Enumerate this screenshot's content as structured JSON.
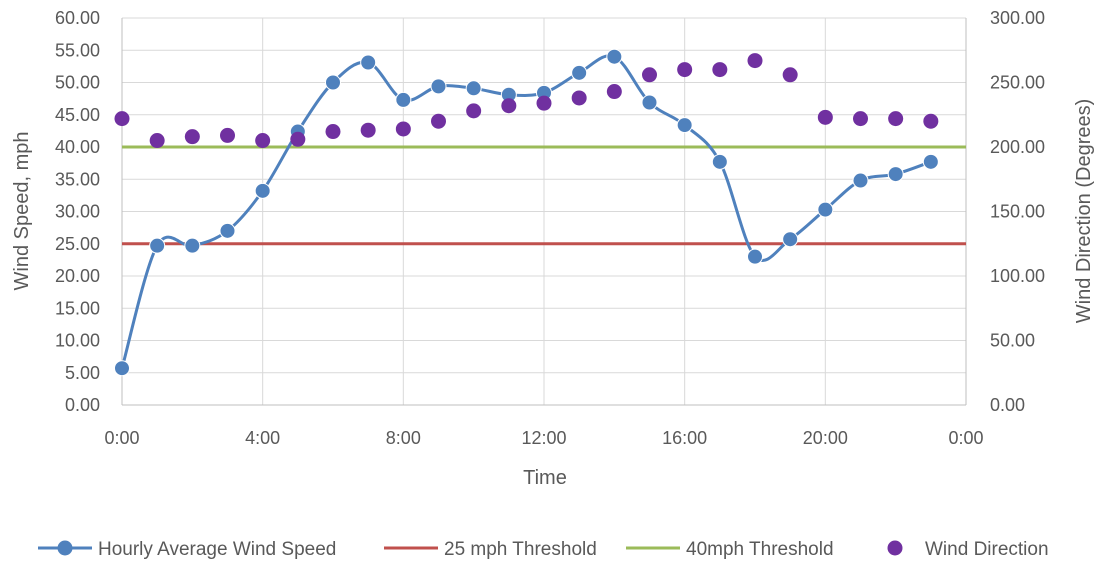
{
  "chart_data": {
    "type": "line",
    "title": "",
    "xlabel": "Time",
    "ylabel": "Wind Speed, mph",
    "y2label": "Wind Direction (Degrees)",
    "xlim": [
      0,
      24
    ],
    "ylim": [
      0,
      60
    ],
    "y2lim": [
      0,
      300
    ],
    "x_ticks": [
      0,
      4,
      8,
      12,
      16,
      20,
      24
    ],
    "x_tick_labels": [
      "0:00",
      "4:00",
      "8:00",
      "12:00",
      "16:00",
      "20:00",
      "0:00"
    ],
    "y_ticks": [
      0,
      5,
      10,
      15,
      20,
      25,
      30,
      35,
      40,
      45,
      50,
      55,
      60
    ],
    "y_tick_labels": [
      "0.00",
      "5.00",
      "10.00",
      "15.00",
      "20.00",
      "25.00",
      "30.00",
      "35.00",
      "40.00",
      "45.00",
      "50.00",
      "55.00",
      "60.00"
    ],
    "y2_ticks": [
      0,
      50,
      100,
      150,
      200,
      250,
      300
    ],
    "y2_tick_labels": [
      "0.00",
      "50.00",
      "100.00",
      "150.00",
      "200.00",
      "250.00",
      "300.00"
    ],
    "grid": true,
    "legend_position": "bottom",
    "series": [
      {
        "name": "Hourly Average Wind Speed",
        "kind": "smooth-line-markers",
        "axis": "left",
        "color": "#4f81bd",
        "x": [
          0,
          1,
          2,
          3,
          4,
          5,
          6,
          7,
          8,
          9,
          10,
          11,
          12,
          13,
          14,
          15,
          16,
          17,
          18,
          19,
          20,
          21,
          22,
          23
        ],
        "values": [
          5.7,
          24.7,
          24.7,
          27.0,
          33.2,
          42.4,
          50.0,
          53.1,
          47.3,
          49.4,
          49.1,
          48.1,
          48.4,
          51.5,
          54.0,
          46.9,
          43.4,
          37.7,
          23.0,
          25.7,
          30.3,
          34.8,
          35.8,
          37.7
        ]
      },
      {
        "name": "25 mph Threshold",
        "kind": "line",
        "axis": "left",
        "color": "#c0504d",
        "x": [
          0,
          24
        ],
        "values": [
          25,
          25
        ]
      },
      {
        "name": "40mph Threshold",
        "kind": "line",
        "axis": "left",
        "color": "#9bbb59",
        "x": [
          0,
          24
        ],
        "values": [
          40,
          40
        ]
      },
      {
        "name": "Wind Direction",
        "kind": "scatter",
        "axis": "right",
        "color": "#7030a0",
        "x": [
          0,
          1,
          2,
          3,
          4,
          5,
          6,
          7,
          8,
          9,
          10,
          11,
          12,
          13,
          14,
          15,
          16,
          17,
          18,
          19,
          20,
          21,
          22,
          23
        ],
        "values": [
          222,
          205,
          208,
          209,
          205,
          206,
          212,
          213,
          214,
          220,
          228,
          232,
          234,
          238,
          243,
          256,
          260,
          260,
          267,
          256,
          223,
          222,
          222,
          220
        ]
      }
    ]
  }
}
